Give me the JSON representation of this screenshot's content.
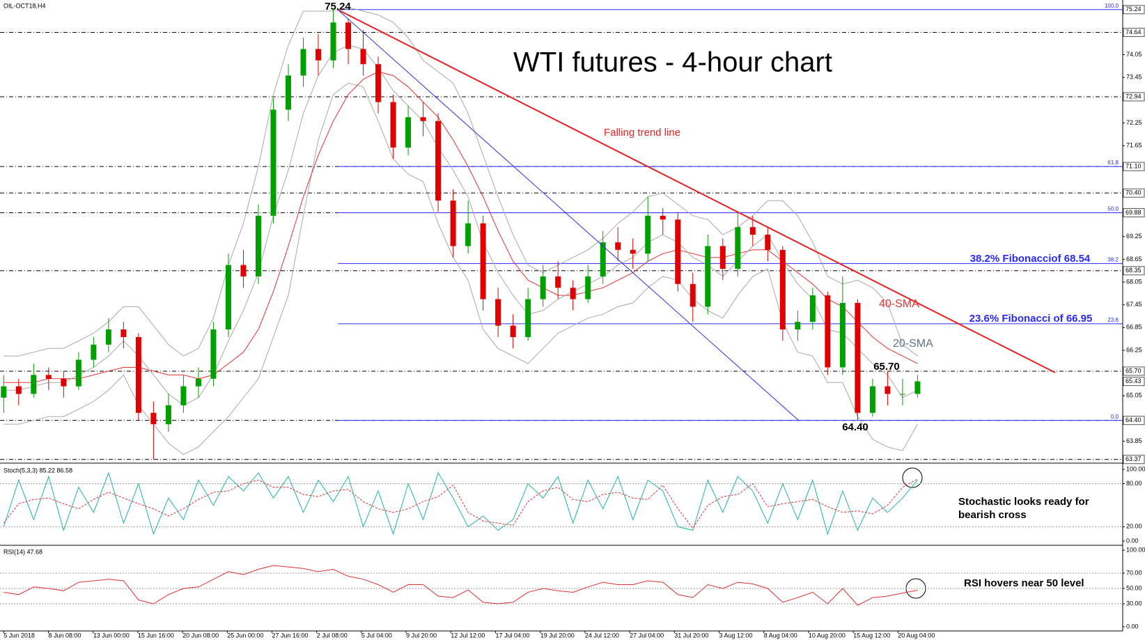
{
  "chart_data": [
    {
      "type": "candlestick",
      "title": "WTI futures - 4-hour chart",
      "symbol": "OIL-OCT18,H4",
      "ylim": [
        63.31,
        75.42
      ],
      "up_color": "#00a000",
      "down_color": "#e00000",
      "band_color": "#a8a8a8",
      "trend_color": "#e82020",
      "fib_color": "#2a2aff",
      "candles": [
        [
          65.0,
          65.6,
          64.6,
          65.3
        ],
        [
          65.3,
          65.5,
          64.8,
          65.1
        ],
        [
          65.1,
          65.9,
          65.0,
          65.6
        ],
        [
          65.6,
          65.8,
          65.2,
          65.5
        ],
        [
          65.5,
          65.7,
          65.0,
          65.3
        ],
        [
          65.3,
          66.2,
          65.2,
          66.0
        ],
        [
          66.0,
          66.6,
          65.8,
          66.4
        ],
        [
          66.4,
          67.1,
          66.2,
          66.8
        ],
        [
          66.8,
          67.0,
          66.3,
          66.6
        ],
        [
          66.6,
          66.7,
          64.4,
          64.6
        ],
        [
          64.6,
          64.9,
          63.37,
          64.3
        ],
        [
          64.3,
          65.1,
          64.1,
          64.8
        ],
        [
          64.8,
          65.6,
          64.6,
          65.3
        ],
        [
          65.3,
          65.8,
          65.0,
          65.5
        ],
        [
          65.5,
          67.0,
          65.3,
          66.8
        ],
        [
          66.8,
          68.8,
          66.6,
          68.5
        ],
        [
          68.5,
          68.9,
          67.9,
          68.2
        ],
        [
          68.2,
          70.1,
          68.0,
          69.8
        ],
        [
          69.8,
          72.9,
          69.6,
          72.6
        ],
        [
          72.6,
          73.8,
          72.3,
          73.5
        ],
        [
          73.5,
          74.5,
          73.2,
          74.2
        ],
        [
          74.2,
          74.6,
          73.5,
          73.9
        ],
        [
          73.9,
          75.24,
          73.7,
          74.9
        ],
        [
          74.9,
          75.0,
          73.8,
          74.2
        ],
        [
          74.2,
          74.7,
          73.5,
          73.8
        ],
        [
          73.8,
          74.0,
          72.5,
          72.8
        ],
        [
          72.8,
          73.0,
          71.3,
          71.6
        ],
        [
          71.6,
          72.7,
          71.4,
          72.4
        ],
        [
          72.4,
          72.8,
          71.9,
          72.3
        ],
        [
          72.3,
          72.5,
          69.9,
          70.2
        ],
        [
          70.2,
          70.5,
          68.7,
          69.0
        ],
        [
          69.0,
          70.2,
          68.8,
          69.6
        ],
        [
          69.6,
          69.8,
          67.3,
          67.6
        ],
        [
          67.6,
          67.9,
          66.6,
          66.9
        ],
        [
          66.9,
          67.2,
          66.3,
          66.6
        ],
        [
          66.6,
          67.9,
          66.5,
          67.6
        ],
        [
          67.6,
          68.5,
          67.4,
          68.2
        ],
        [
          68.2,
          68.6,
          67.6,
          67.9
        ],
        [
          67.9,
          68.1,
          67.3,
          67.6
        ],
        [
          67.6,
          68.5,
          67.5,
          68.2
        ],
        [
          68.2,
          69.4,
          68.0,
          69.1
        ],
        [
          69.1,
          69.5,
          68.6,
          68.9
        ],
        [
          68.9,
          69.2,
          68.4,
          68.8
        ],
        [
          68.8,
          70.3,
          68.6,
          69.8
        ],
        [
          69.8,
          70.0,
          69.3,
          69.7
        ],
        [
          69.7,
          69.9,
          67.8,
          68.0
        ],
        [
          68.0,
          68.3,
          67.0,
          67.4
        ],
        [
          67.4,
          69.3,
          67.2,
          69.0
        ],
        [
          69.0,
          69.2,
          68.1,
          68.4
        ],
        [
          68.4,
          69.9,
          68.2,
          69.5
        ],
        [
          69.5,
          69.8,
          69.0,
          69.3
        ],
        [
          69.3,
          69.5,
          68.6,
          68.9
        ],
        [
          68.9,
          69.0,
          66.5,
          66.8
        ],
        [
          66.8,
          67.3,
          66.5,
          67.0
        ],
        [
          67.0,
          67.9,
          66.8,
          67.7
        ],
        [
          67.7,
          67.8,
          65.6,
          65.8
        ],
        [
          65.8,
          68.2,
          65.6,
          67.5
        ],
        [
          67.5,
          67.6,
          64.4,
          64.6
        ],
        [
          64.6,
          65.5,
          64.5,
          65.3
        ],
        [
          65.3,
          65.7,
          64.8,
          65.1
        ],
        [
          65.1,
          65.5,
          64.8,
          65.1
        ],
        [
          65.1,
          65.6,
          65.0,
          65.43
        ]
      ],
      "series": [
        {
          "name": "40-SMA",
          "color": "#e83030",
          "values": [
            65.4,
            65.4,
            65.4,
            65.5,
            65.5,
            65.5,
            65.6,
            65.7,
            65.8,
            65.8,
            65.7,
            65.6,
            65.6,
            65.5,
            65.6,
            65.9,
            66.2,
            66.8,
            67.8,
            69.0,
            70.3,
            71.4,
            72.3,
            73.0,
            73.4,
            73.6,
            73.5,
            73.2,
            72.8,
            72.4,
            71.8,
            71.1,
            70.3,
            69.4,
            68.6,
            68.1,
            67.9,
            67.7,
            67.7,
            67.8,
            67.9,
            68.1,
            68.3,
            68.6,
            68.8,
            68.9,
            68.8,
            68.7,
            68.7,
            68.8,
            68.9,
            68.9,
            68.6,
            68.3,
            68.0,
            67.6,
            67.4,
            67.0,
            66.6,
            66.3,
            66.1,
            65.9
          ]
        },
        {
          "name": "20-SMA",
          "color": "#a8a8a8",
          "values": [
            65.2,
            65.2,
            65.3,
            65.4,
            65.4,
            65.6,
            65.8,
            66.1,
            66.5,
            66.1,
            65.6,
            65.1,
            64.8,
            65.0,
            65.6,
            66.5,
            67.3,
            68.3,
            69.8,
            71.0,
            72.5,
            73.5,
            74.1,
            74.3,
            74.2,
            73.7,
            73.1,
            72.7,
            72.3,
            71.6,
            71.0,
            70.3,
            69.1,
            68.3,
            67.7,
            67.2,
            67.3,
            67.6,
            67.8,
            68.0,
            68.2,
            68.5,
            68.7,
            69.1,
            69.3,
            69.1,
            68.7,
            68.5,
            68.2,
            68.6,
            69.0,
            69.3,
            68.6,
            68.0,
            67.6,
            66.8,
            66.7,
            66.3,
            65.9,
            65.6,
            65.0,
            65.2
          ]
        }
      ],
      "upper": [
        66.1,
        66.1,
        66.2,
        66.3,
        66.3,
        66.5,
        66.7,
        67.0,
        67.4,
        67.4,
        66.9,
        66.4,
        66.1,
        66.3,
        67.1,
        68.5,
        69.6,
        71.1,
        73.0,
        74.3,
        75.2,
        75.2,
        75.2,
        75.3,
        75.2,
        75.1,
        74.9,
        74.5,
        73.9,
        73.6,
        73.3,
        72.5,
        71.4,
        70.3,
        69.3,
        68.5,
        68.3,
        68.5,
        68.7,
        68.9,
        69.2,
        69.6,
        69.9,
        70.3,
        70.4,
        70.1,
        69.8,
        69.7,
        69.3,
        69.5,
        69.8,
        70.2,
        70.2,
        69.8,
        69.1,
        68.2,
        68.0,
        68.1,
        67.9,
        67.5,
        66.4,
        66.1
      ],
      "lower": [
        64.3,
        64.3,
        64.4,
        64.5,
        64.5,
        64.7,
        64.9,
        65.2,
        65.6,
        64.8,
        64.3,
        63.8,
        63.5,
        63.7,
        64.1,
        64.5,
        65.0,
        65.5,
        66.6,
        67.7,
        69.8,
        71.8,
        73.0,
        73.3,
        73.2,
        72.3,
        71.3,
        70.9,
        70.7,
        69.6,
        68.7,
        68.1,
        66.8,
        66.3,
        66.1,
        65.9,
        66.3,
        66.7,
        66.9,
        67.1,
        67.2,
        67.4,
        67.5,
        67.9,
        68.2,
        68.1,
        67.6,
        67.3,
        67.1,
        67.7,
        68.2,
        68.4,
        67.0,
        66.2,
        66.1,
        65.4,
        65.4,
        64.5,
        63.9,
        63.7,
        63.6,
        64.3
      ],
      "yticks": [
        74.05,
        73.45,
        72.25,
        71.65,
        69.25,
        68.65,
        68.05,
        67.45,
        66.85,
        66.25,
        65.05,
        63.85
      ],
      "price_labels": [
        75.24,
        74.64,
        72.94,
        {
          "value": 71.1,
          "label": "71.10"
        },
        {
          "value": 70.4,
          "label": "70.40"
        },
        69.88,
        68.35,
        {
          "value": 65.7,
          "label": "65.70"
        },
        65.43,
        {
          "value": 64.4,
          "label": "64.40"
        },
        63.37
      ],
      "hlines": [
        74.64,
        72.94,
        71.1,
        70.4,
        69.88,
        68.35,
        65.7,
        64.4,
        63.37
      ],
      "fib_levels": [
        {
          "value": 75.24,
          "label": "100.0"
        },
        {
          "value": 71.1,
          "label": "61.8"
        },
        {
          "value": 69.88,
          "label": "50.0"
        },
        {
          "value": 68.54,
          "label": "38.2"
        },
        {
          "value": 66.95,
          "label": "23.6"
        },
        {
          "value": 64.4,
          "label": "0.0"
        }
      ],
      "fib_notes": [
        "38.2% Fibonacciof  68.54",
        "23.6% Fibonacci of 66.95"
      ],
      "annotations": [
        "Falling trend line",
        "75.24",
        "65.70",
        "64.40"
      ]
    },
    {
      "type": "line",
      "title": "Stoch(5,3,3) 85.22 86.58",
      "ylim": [
        -4.9,
        105.8
      ],
      "yticks": [
        {
          "value": 100,
          "label": "100.00"
        },
        {
          "value": 80,
          "label": "80.00"
        },
        {
          "value": 20,
          "label": "20.00"
        },
        {
          "value": 0,
          "label": "0.00"
        }
      ],
      "levels": [
        80,
        20
      ],
      "series": [
        {
          "color": "#20b2aa",
          "values": [
            20,
            85,
            30,
            90,
            15,
            75,
            40,
            95,
            25,
            80,
            10,
            60,
            30,
            85,
            50,
            90,
            70,
            95,
            60,
            90,
            40,
            85,
            55,
            90,
            20,
            70,
            10,
            80,
            30,
            95,
            60,
            20,
            35,
            15,
            30,
            80,
            60,
            90,
            25,
            85,
            45,
            90,
            30,
            85,
            70,
            20,
            15,
            85,
            40,
            90,
            70,
            25,
            80,
            30,
            85,
            10,
            70,
            15,
            60,
            40,
            60,
            85.22
          ]
        },
        {
          "color": "#e03030",
          "dashed": true,
          "values": [
            25,
            52,
            58,
            60,
            52,
            45,
            58,
            68,
            60,
            52,
            45,
            35,
            45,
            58,
            68,
            70,
            80,
            85,
            75,
            75,
            65,
            62,
            70,
            72,
            55,
            45,
            40,
            45,
            55,
            62,
            78,
            40,
            28,
            25,
            22,
            55,
            70,
            75,
            58,
            55,
            65,
            68,
            60,
            58,
            78,
            45,
            18,
            50,
            62,
            65,
            80,
            48,
            52,
            55,
            58,
            48,
            40,
            42,
            38,
            50,
            75,
            86.58
          ]
        }
      ],
      "notes": [
        "Stochastic looks ready for",
        "bearish cross"
      ]
    },
    {
      "type": "line",
      "title": "RSI(14) 47.68",
      "ylim": [
        -5.5,
        104.5
      ],
      "yticks": [
        {
          "value": 100,
          "label": "100.00"
        },
        {
          "value": 70,
          "label": "70.00"
        },
        {
          "value": 50,
          "label": "50.00"
        },
        {
          "value": 30,
          "label": "30.00"
        },
        {
          "value": 0,
          "label": "0.00"
        }
      ],
      "levels": [
        70,
        50,
        30
      ],
      "series": [
        {
          "color": "#e03030",
          "values": [
            45,
            42,
            52,
            50,
            47,
            58,
            60,
            62,
            60,
            35,
            30,
            42,
            50,
            52,
            62,
            72,
            68,
            75,
            80,
            78,
            76,
            72,
            75,
            66,
            62,
            55,
            45,
            55,
            55,
            40,
            38,
            48,
            32,
            30,
            32,
            45,
            50,
            47,
            45,
            52,
            58,
            55,
            55,
            60,
            58,
            42,
            38,
            55,
            50,
            58,
            56,
            50,
            32,
            38,
            45,
            30,
            50,
            28,
            38,
            40,
            44,
            47.68
          ]
        }
      ],
      "notes": [
        "RSI hovers near 50 level"
      ],
      "xtick_labels": [
        "5 Jun 2018",
        "8 Jun 08:00",
        "13 Jun 00:00",
        "15 Jun 16:00",
        "20 Jun 08:00",
        "25 Jun 00:00",
        "27 Jun 16:00",
        "2 Jul 08:00",
        "5 Jul 04:00",
        "9 Jul 20:00",
        "12 Jul 12:00",
        "17 Jul 04:00",
        "19 Jul 20:00",
        "24 Jul 12:00",
        "27 Jul 04:00",
        "31 Jul 20:00",
        "3 Aug 12:00",
        "8 Aug 04:00",
        "10 Aug 20:00",
        "15 Aug 12:00",
        "20 Aug 04:00"
      ]
    }
  ]
}
